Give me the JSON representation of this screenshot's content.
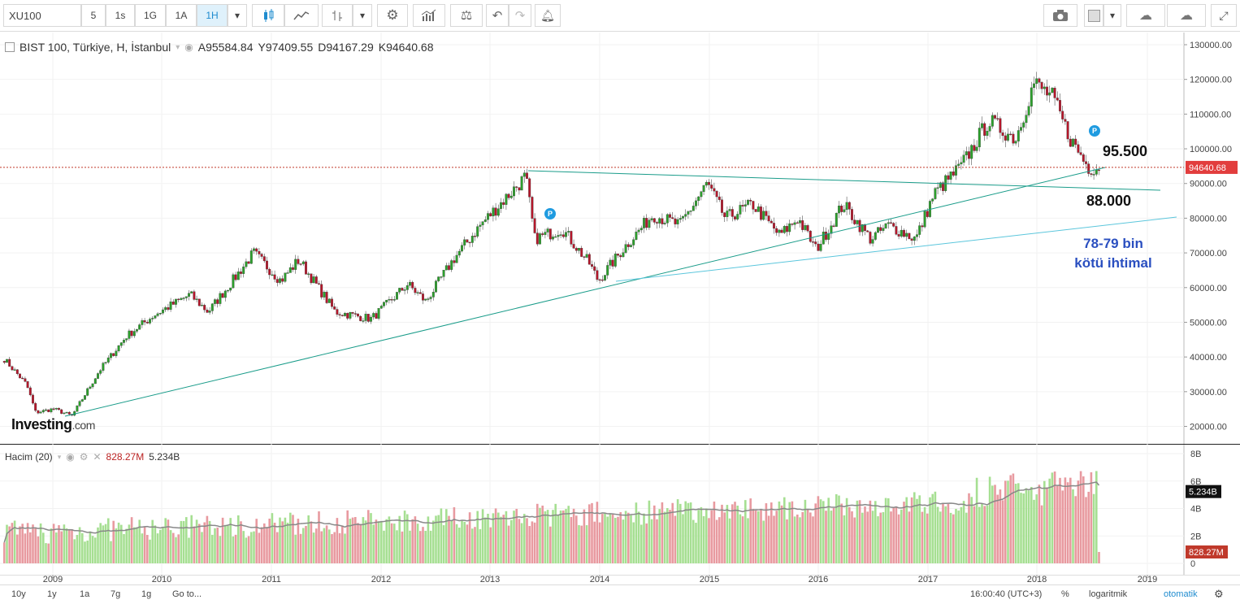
{
  "toolbar": {
    "symbol": "XU100",
    "intervals": [
      "5",
      "1s",
      "1G",
      "1A",
      "1H"
    ],
    "active_interval": "1H"
  },
  "legend": {
    "title": "BIST 100, Türkiye, H, İstanbul",
    "open": "A95584.84",
    "high": "Y97409.55",
    "low": "D94167.29",
    "close": "K94640.68"
  },
  "volume_legend": {
    "name": "Hacim (20)",
    "value1": "828.27M",
    "value2": "5.234B"
  },
  "annotations": {
    "level_high": "95.500",
    "level_mid": "88.000",
    "worst_line1": "78-79 bin",
    "worst_line2": "kötü ihtimal",
    "badge": "P"
  },
  "logo": {
    "main": "Investing",
    "suffix": ".com"
  },
  "price_axis": {
    "ticks": [
      "130000.00",
      "120000.00",
      "110000.00",
      "100000.00",
      "90000.00",
      "80000.00",
      "70000.00",
      "60000.00",
      "50000.00",
      "40000.00",
      "30000.00",
      "20000.00"
    ],
    "current_price_label": "94640.68"
  },
  "volume_axis": {
    "ticks": [
      "8B",
      "6B",
      "4B",
      "2B",
      "0"
    ],
    "labels": {
      "ma": "5.234B",
      "last": "828.27M"
    }
  },
  "time_axis": {
    "ticks": [
      "2009",
      "2010",
      "2011",
      "2012",
      "2013",
      "2014",
      "2015",
      "2016",
      "2017",
      "2018",
      "2019"
    ]
  },
  "bottom_bar": {
    "ranges": [
      "10y",
      "1y",
      "1a",
      "7g",
      "1g",
      "Go to..."
    ],
    "time": "16:00:40 (UTC+3)",
    "percent": "%",
    "log": "logaritmik",
    "auto": "otomatik"
  },
  "colors": {
    "up": "#2ca02c",
    "down": "#b5172b",
    "trend": "#1a9c8a",
    "accent": "#1f8ccf"
  },
  "chart_data": {
    "type": "candlestick",
    "title": "BIST 100, Türkiye, H, İstanbul",
    "interval": "weekly",
    "x_range": [
      "2008-07",
      "2018-07"
    ],
    "y_range": [
      15000,
      132000
    ],
    "y_scale": "linear",
    "grid": true,
    "anchors": [
      {
        "date": "2008-07",
        "close": 41000
      },
      {
        "date": "2008-10",
        "close": 32000
      },
      {
        "date": "2008-11",
        "close": 24000
      },
      {
        "date": "2009-01",
        "close": 25000
      },
      {
        "date": "2009-03",
        "close": 23000
      },
      {
        "date": "2009-06",
        "close": 36000
      },
      {
        "date": "2009-09",
        "close": 46000
      },
      {
        "date": "2009-12",
        "close": 52000
      },
      {
        "date": "2010-04",
        "close": 58000
      },
      {
        "date": "2010-06",
        "close": 53000
      },
      {
        "date": "2010-09",
        "close": 63000
      },
      {
        "date": "2010-11",
        "close": 70000
      },
      {
        "date": "2011-02",
        "close": 62000
      },
      {
        "date": "2011-04",
        "close": 68000
      },
      {
        "date": "2011-08",
        "close": 53000
      },
      {
        "date": "2011-12",
        "close": 51000
      },
      {
        "date": "2012-04",
        "close": 61000
      },
      {
        "date": "2012-06",
        "close": 56000
      },
      {
        "date": "2012-09",
        "close": 68000
      },
      {
        "date": "2012-12",
        "close": 78000
      },
      {
        "date": "2013-05",
        "close": 92000
      },
      {
        "date": "2013-06",
        "close": 74000
      },
      {
        "date": "2013-09",
        "close": 77000
      },
      {
        "date": "2013-12",
        "close": 67000
      },
      {
        "date": "2014-01",
        "close": 62000
      },
      {
        "date": "2014-04",
        "close": 72000
      },
      {
        "date": "2014-07",
        "close": 81000
      },
      {
        "date": "2014-10",
        "close": 78000
      },
      {
        "date": "2015-01",
        "close": 90000
      },
      {
        "date": "2015-03",
        "close": 80000
      },
      {
        "date": "2015-06",
        "close": 84000
      },
      {
        "date": "2015-09",
        "close": 75000
      },
      {
        "date": "2015-11",
        "close": 80000
      },
      {
        "date": "2016-01",
        "close": 71000
      },
      {
        "date": "2016-04",
        "close": 84000
      },
      {
        "date": "2016-07",
        "close": 74000
      },
      {
        "date": "2016-09",
        "close": 78000
      },
      {
        "date": "2016-12",
        "close": 74000
      },
      {
        "date": "2017-02",
        "close": 87000
      },
      {
        "date": "2017-05",
        "close": 95000
      },
      {
        "date": "2017-08",
        "close": 108000
      },
      {
        "date": "2017-11",
        "close": 103000
      },
      {
        "date": "2018-01",
        "close": 119000
      },
      {
        "date": "2018-03",
        "close": 115000
      },
      {
        "date": "2018-05",
        "close": 103000
      },
      {
        "date": "2018-07",
        "close": 94640
      }
    ],
    "volume_range": [
      0,
      8
    ],
    "volume_unit": "B",
    "volume_ma_period": 20
  }
}
